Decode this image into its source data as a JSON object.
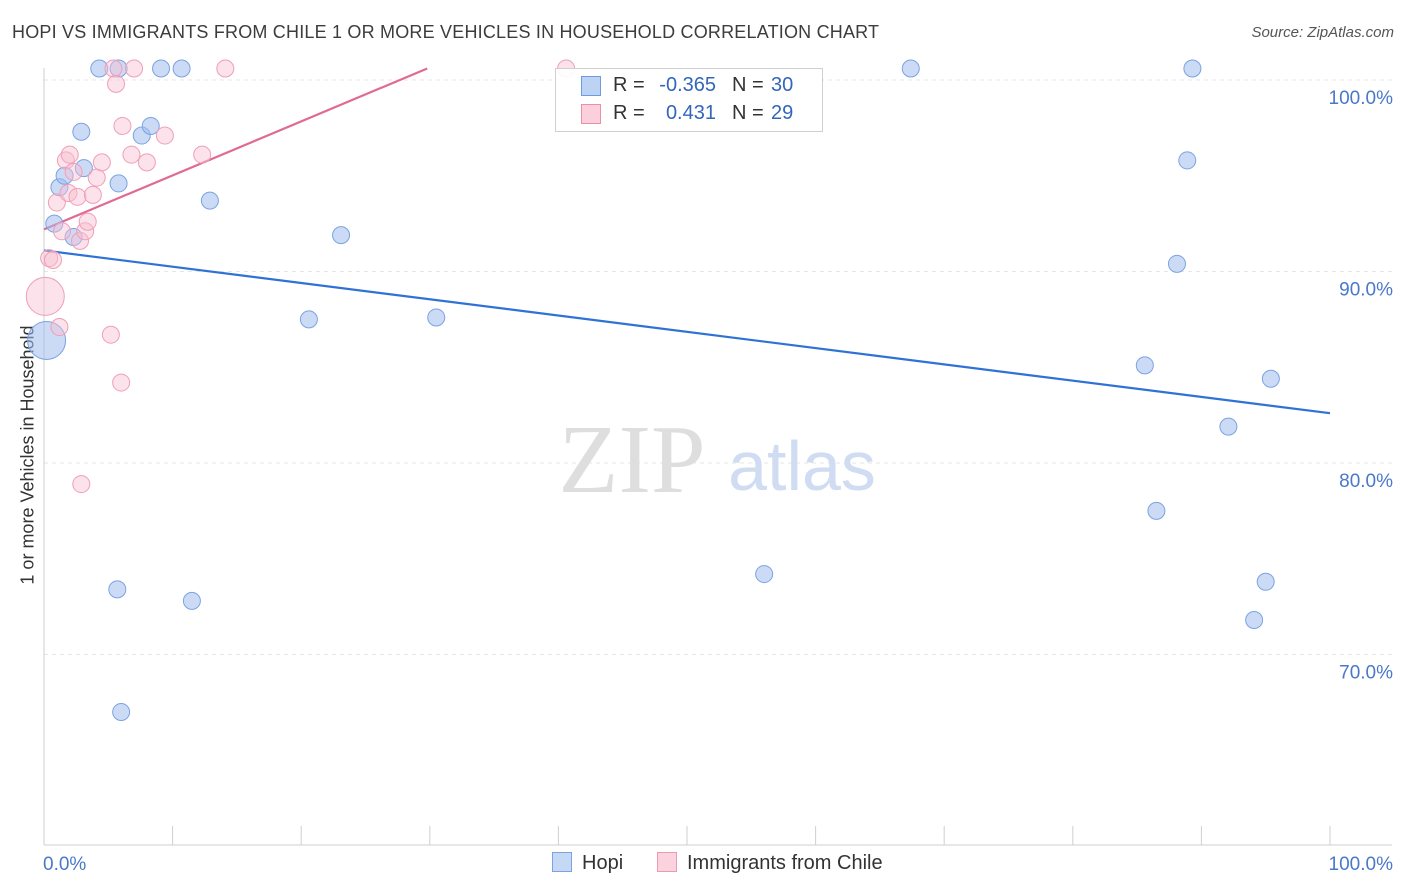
{
  "title": "HOPI VS IMMIGRANTS FROM CHILE 1 OR MORE VEHICLES IN HOUSEHOLD CORRELATION CHART",
  "source": "Source: ZipAtlas.com",
  "watermark": {
    "zip": "ZIP",
    "atlas": "atlas"
  },
  "legend": {
    "rows": [
      {
        "r_label": "R =",
        "r_value": "-0.365",
        "n_label": "N =",
        "n_value": "30",
        "color": "#a8c4ee",
        "stroke": "#6f9be0"
      },
      {
        "r_label": "R =",
        "r_value": "0.431",
        "n_label": "N =",
        "n_value": "29",
        "color": "#f8c0d0",
        "stroke": "#e890a8"
      }
    ],
    "bottom": [
      {
        "label": "Hopi",
        "color": "#c5d8f5",
        "stroke": "#7aa3e0"
      },
      {
        "label": "Immigrants from Chile",
        "color": "#fbd3de",
        "stroke": "#ec9ab2"
      }
    ]
  },
  "chart_data": {
    "type": "scatter",
    "title": "HOPI VS IMMIGRANTS FROM CHILE 1 OR MORE VEHICLES IN HOUSEHOLD CORRELATION CHART",
    "xlabel": "",
    "ylabel": "1 or more Vehicles in Household",
    "xlim": [
      0,
      100
    ],
    "ylim": [
      60,
      100
    ],
    "x_tick_labels": [
      "0.0%",
      "100.0%"
    ],
    "y_ticks": [
      {
        "value": 100,
        "label": "100.0%"
      },
      {
        "value": 90,
        "label": "90.0%"
      },
      {
        "value": 80,
        "label": "80.0%"
      },
      {
        "value": 70,
        "label": "70.0%"
      }
    ],
    "grid": true,
    "series": [
      {
        "name": "Hopi",
        "fill": "rgba(160,190,238,0.55)",
        "stroke": "#7ba3e2",
        "trend": {
          "x": [
            0,
            100
          ],
          "y": [
            91.1,
            82.6
          ],
          "color": "#2f72d6"
        },
        "points": [
          {
            "x": 0.2,
            "y": 86.4,
            "s": 2
          },
          {
            "x": 0.8,
            "y": 92.5,
            "s": 1
          },
          {
            "x": 1.2,
            "y": 94.4,
            "s": 1
          },
          {
            "x": 1.6,
            "y": 95.0,
            "s": 1
          },
          {
            "x": 2.3,
            "y": 91.8,
            "s": 1
          },
          {
            "x": 2.9,
            "y": 97.3,
            "s": 1
          },
          {
            "x": 3.1,
            "y": 95.4,
            "s": 1
          },
          {
            "x": 4.3,
            "y": 100.6,
            "s": 1
          },
          {
            "x": 5.7,
            "y": 73.4,
            "s": 1
          },
          {
            "x": 5.8,
            "y": 100.6,
            "s": 1
          },
          {
            "x": 5.8,
            "y": 94.6,
            "s": 1
          },
          {
            "x": 6.0,
            "y": 67.0,
            "s": 1
          },
          {
            "x": 7.6,
            "y": 97.1,
            "s": 1
          },
          {
            "x": 8.3,
            "y": 97.6,
            "s": 1
          },
          {
            "x": 9.1,
            "y": 100.6,
            "s": 1
          },
          {
            "x": 10.7,
            "y": 100.6,
            "s": 1
          },
          {
            "x": 11.5,
            "y": 72.8,
            "s": 1
          },
          {
            "x": 12.9,
            "y": 93.7,
            "s": 1
          },
          {
            "x": 20.6,
            "y": 87.5,
            "s": 1
          },
          {
            "x": 23.1,
            "y": 91.9,
            "s": 1
          },
          {
            "x": 30.5,
            "y": 87.6,
            "s": 1
          },
          {
            "x": 56.0,
            "y": 74.2,
            "s": 1
          },
          {
            "x": 67.4,
            "y": 100.6,
            "s": 1
          },
          {
            "x": 85.6,
            "y": 85.1,
            "s": 1
          },
          {
            "x": 86.5,
            "y": 77.5,
            "s": 1
          },
          {
            "x": 88.1,
            "y": 90.4,
            "s": 1
          },
          {
            "x": 88.9,
            "y": 95.8,
            "s": 1
          },
          {
            "x": 89.3,
            "y": 100.6,
            "s": 1
          },
          {
            "x": 92.1,
            "y": 81.9,
            "s": 1
          },
          {
            "x": 94.1,
            "y": 71.8,
            "s": 1
          },
          {
            "x": 95.0,
            "y": 73.8,
            "s": 1
          },
          {
            "x": 95.4,
            "y": 84.4,
            "s": 1
          }
        ]
      },
      {
        "name": "Immigrants from Chile",
        "fill": "rgba(248,190,208,0.45)",
        "stroke": "#ef9fb6",
        "trend": {
          "x": [
            0,
            29.8
          ],
          "y": [
            92.2,
            100.6
          ],
          "color": "#e06a93"
        },
        "points": [
          {
            "x": 0.1,
            "y": 88.7,
            "s": 2
          },
          {
            "x": 0.4,
            "y": 90.7,
            "s": 1
          },
          {
            "x": 0.7,
            "y": 90.6,
            "s": 1
          },
          {
            "x": 1.0,
            "y": 93.6,
            "s": 1
          },
          {
            "x": 1.2,
            "y": 87.1,
            "s": 1
          },
          {
            "x": 1.4,
            "y": 92.1,
            "s": 1
          },
          {
            "x": 1.7,
            "y": 95.8,
            "s": 1
          },
          {
            "x": 1.9,
            "y": 94.1,
            "s": 1
          },
          {
            "x": 2.0,
            "y": 96.1,
            "s": 1
          },
          {
            "x": 2.3,
            "y": 95.2,
            "s": 1
          },
          {
            "x": 2.6,
            "y": 93.9,
            "s": 1
          },
          {
            "x": 2.8,
            "y": 91.6,
            "s": 1
          },
          {
            "x": 2.9,
            "y": 78.9,
            "s": 1
          },
          {
            "x": 3.2,
            "y": 92.1,
            "s": 1
          },
          {
            "x": 3.4,
            "y": 92.6,
            "s": 1
          },
          {
            "x": 3.8,
            "y": 94.0,
            "s": 1
          },
          {
            "x": 4.1,
            "y": 94.9,
            "s": 1
          },
          {
            "x": 4.5,
            "y": 95.7,
            "s": 1
          },
          {
            "x": 5.2,
            "y": 86.7,
            "s": 1
          },
          {
            "x": 5.4,
            "y": 100.6,
            "s": 1
          },
          {
            "x": 5.6,
            "y": 99.8,
            "s": 1
          },
          {
            "x": 6.0,
            "y": 84.2,
            "s": 1
          },
          {
            "x": 6.1,
            "y": 97.6,
            "s": 1
          },
          {
            "x": 6.8,
            "y": 96.1,
            "s": 1
          },
          {
            "x": 7.0,
            "y": 100.6,
            "s": 1
          },
          {
            "x": 8.0,
            "y": 95.7,
            "s": 1
          },
          {
            "x": 9.4,
            "y": 97.1,
            "s": 1
          },
          {
            "x": 12.3,
            "y": 96.1,
            "s": 1
          },
          {
            "x": 14.1,
            "y": 100.6,
            "s": 1
          },
          {
            "x": 40.6,
            "y": 100.6,
            "s": 1
          }
        ]
      }
    ]
  }
}
